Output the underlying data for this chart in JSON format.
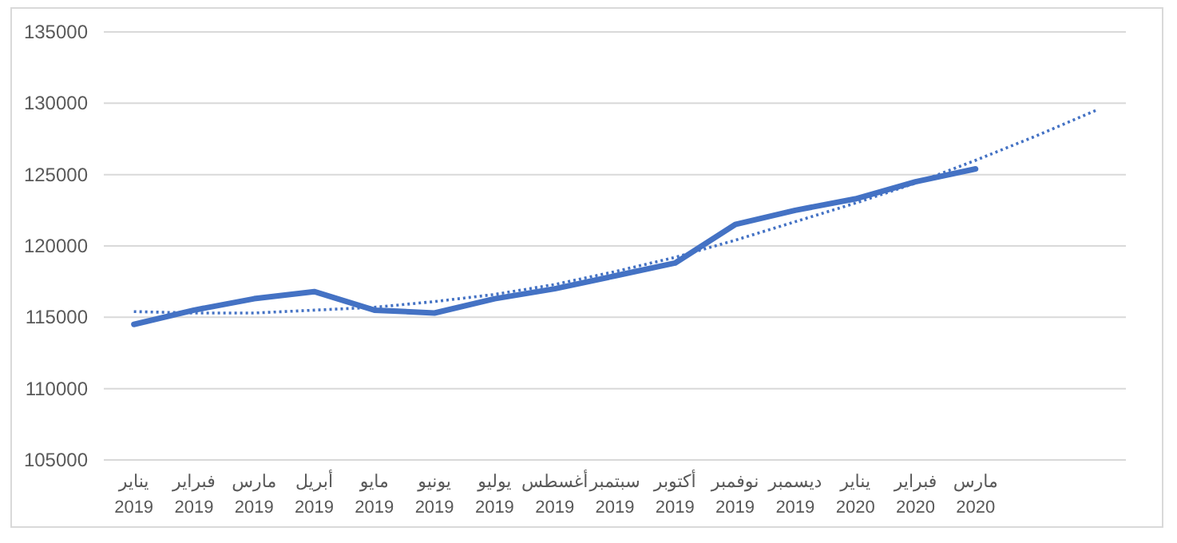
{
  "chart_data": {
    "type": "line",
    "categories": [
      "يناير\n2019",
      "فبراير\n2019",
      "مارس\n2019",
      "أبريل\n2019",
      "مايو\n2019",
      "يونيو\n2019",
      "يوليو\n2019",
      "أغسطس\n2019",
      "سبتمبر\n2019",
      "أكتوبر\n2019",
      "نوفمبر\n2019",
      "ديسمبر\n2019",
      "يناير\n2020",
      "فبراير\n2020",
      "مارس\n2020",
      null,
      null
    ],
    "series": [
      {
        "color": "#4472c4",
        "line_style": "solid",
        "values": [
          114500,
          115500,
          116300,
          116800,
          115500,
          115300,
          116300,
          117000,
          117900,
          118800,
          121500,
          122500,
          123300,
          124500,
          125400,
          null,
          null
        ]
      },
      {
        "color": "#4472c4",
        "line_style": "dotted",
        "values": [
          115400,
          115300,
          115300,
          115500,
          115700,
          116100,
          116600,
          117300,
          118200,
          119200,
          120400,
          121700,
          123000,
          124400,
          126000,
          127700,
          129500
        ]
      }
    ],
    "ylim": [
      105000,
      135000
    ],
    "yticks": [
      105000,
      110000,
      115000,
      120000,
      125000,
      130000,
      135000
    ],
    "grid": "y",
    "marker": "none"
  }
}
